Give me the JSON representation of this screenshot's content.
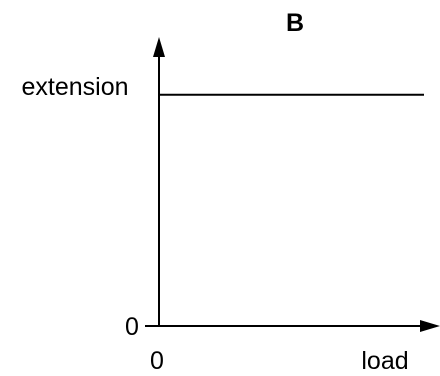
{
  "chart_data": {
    "type": "line",
    "title": "B",
    "xlabel": "load",
    "ylabel": "extension",
    "x_ticks": [
      "0"
    ],
    "y_ticks": [
      "0"
    ],
    "grid": false,
    "legend": "none",
    "series": [
      {
        "x": [
          0,
          1
        ],
        "y": [
          0.8,
          0.8
        ]
      }
    ],
    "xlim": [
      0,
      1
    ],
    "ylim": [
      0,
      1
    ],
    "colors": {
      "axis": "#000000",
      "line": "#000000"
    }
  }
}
